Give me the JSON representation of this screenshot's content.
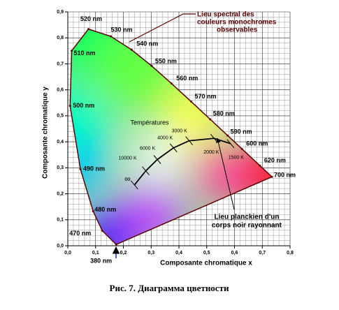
{
  "chart_data": {
    "type": "chromaticity",
    "x_label": "Composante chromatique x",
    "y_label": "Composante chromatique y",
    "xlim": [
      0,
      0.8
    ],
    "ylim": [
      0,
      0.9
    ],
    "grid": true,
    "xticks": [
      {
        "value": 0,
        "label": "0,0"
      },
      {
        "value": 0.1,
        "label": "0,1"
      },
      {
        "value": 0.2,
        "label": "0,2"
      },
      {
        "value": 0.3,
        "label": "0,3"
      },
      {
        "value": 0.4,
        "label": "0,4"
      },
      {
        "value": 0.5,
        "label": "0,5"
      },
      {
        "value": 0.6,
        "label": "0,6"
      },
      {
        "value": 0.7,
        "label": "0,7"
      },
      {
        "value": 0.8,
        "label": "0,8"
      }
    ],
    "yticks": [
      {
        "value": 0,
        "label": "0,0"
      },
      {
        "value": 0.1,
        "label": "0,1"
      },
      {
        "value": 0.2,
        "label": "0,2"
      },
      {
        "value": 0.3,
        "label": "0,3"
      },
      {
        "value": 0.4,
        "label": "0,4"
      },
      {
        "value": 0.5,
        "label": "0,5"
      },
      {
        "value": 0.6,
        "label": "0,6"
      },
      {
        "value": 0.7,
        "label": "0,7"
      },
      {
        "value": 0.8,
        "label": "0,8"
      },
      {
        "value": 0.9,
        "label": "0,9"
      }
    ],
    "spectral_locus": {
      "color": "#5a0000",
      "annotation": [
        "Lieu spectral des",
        "couleurs monochromes",
        "observables"
      ],
      "points": [
        {
          "label": "380 nm",
          "x": 0.1741,
          "y": 0.005
        },
        {
          "label": "470 nm",
          "x": 0.1241,
          "y": 0.0578
        },
        {
          "label": "480 nm",
          "x": 0.0913,
          "y": 0.1327
        },
        {
          "label": "490 nm",
          "x": 0.0454,
          "y": 0.295
        },
        {
          "label": "500 nm",
          "x": 0.0082,
          "y": 0.5384
        },
        {
          "label": "510 nm",
          "x": 0.0139,
          "y": 0.7502
        },
        {
          "label": "520 nm",
          "x": 0.0743,
          "y": 0.8338
        },
        {
          "label": "530 nm",
          "x": 0.1547,
          "y": 0.8059
        },
        {
          "label": "540 nm",
          "x": 0.2296,
          "y": 0.7543
        },
        {
          "label": "550 nm",
          "x": 0.3016,
          "y": 0.6923
        },
        {
          "label": "560 nm",
          "x": 0.3731,
          "y": 0.6245
        },
        {
          "label": "570 nm",
          "x": 0.4441,
          "y": 0.5547
        },
        {
          "label": "580 nm",
          "x": 0.5125,
          "y": 0.4866
        },
        {
          "label": "590 nm",
          "x": 0.5752,
          "y": 0.4242
        },
        {
          "label": "600 nm",
          "x": 0.627,
          "y": 0.3725
        },
        {
          "label": "620 nm",
          "x": 0.6915,
          "y": 0.3083
        },
        {
          "label": "700 nm",
          "x": 0.7347,
          "y": 0.2653
        }
      ]
    },
    "planckian_locus": {
      "title": "Températures",
      "annotation": [
        "Lieu planckien d'un",
        "corps noir rayonnant"
      ],
      "points": [
        {
          "label": "1500 K",
          "x": 0.5857,
          "y": 0.3931
        },
        {
          "label": "2000 K",
          "x": 0.5266,
          "y": 0.4133
        },
        {
          "label": "3000 K",
          "x": 0.4369,
          "y": 0.4041
        },
        {
          "label": "4000 K",
          "x": 0.3805,
          "y": 0.3768
        },
        {
          "label": "6000 K",
          "x": 0.3221,
          "y": 0.3318
        },
        {
          "label": "10000 K",
          "x": 0.2807,
          "y": 0.2883
        },
        {
          "label": "∞",
          "x": 0.2399,
          "y": 0.234
        }
      ]
    },
    "caption": "Рис. 7. Диаграмма цветности"
  }
}
